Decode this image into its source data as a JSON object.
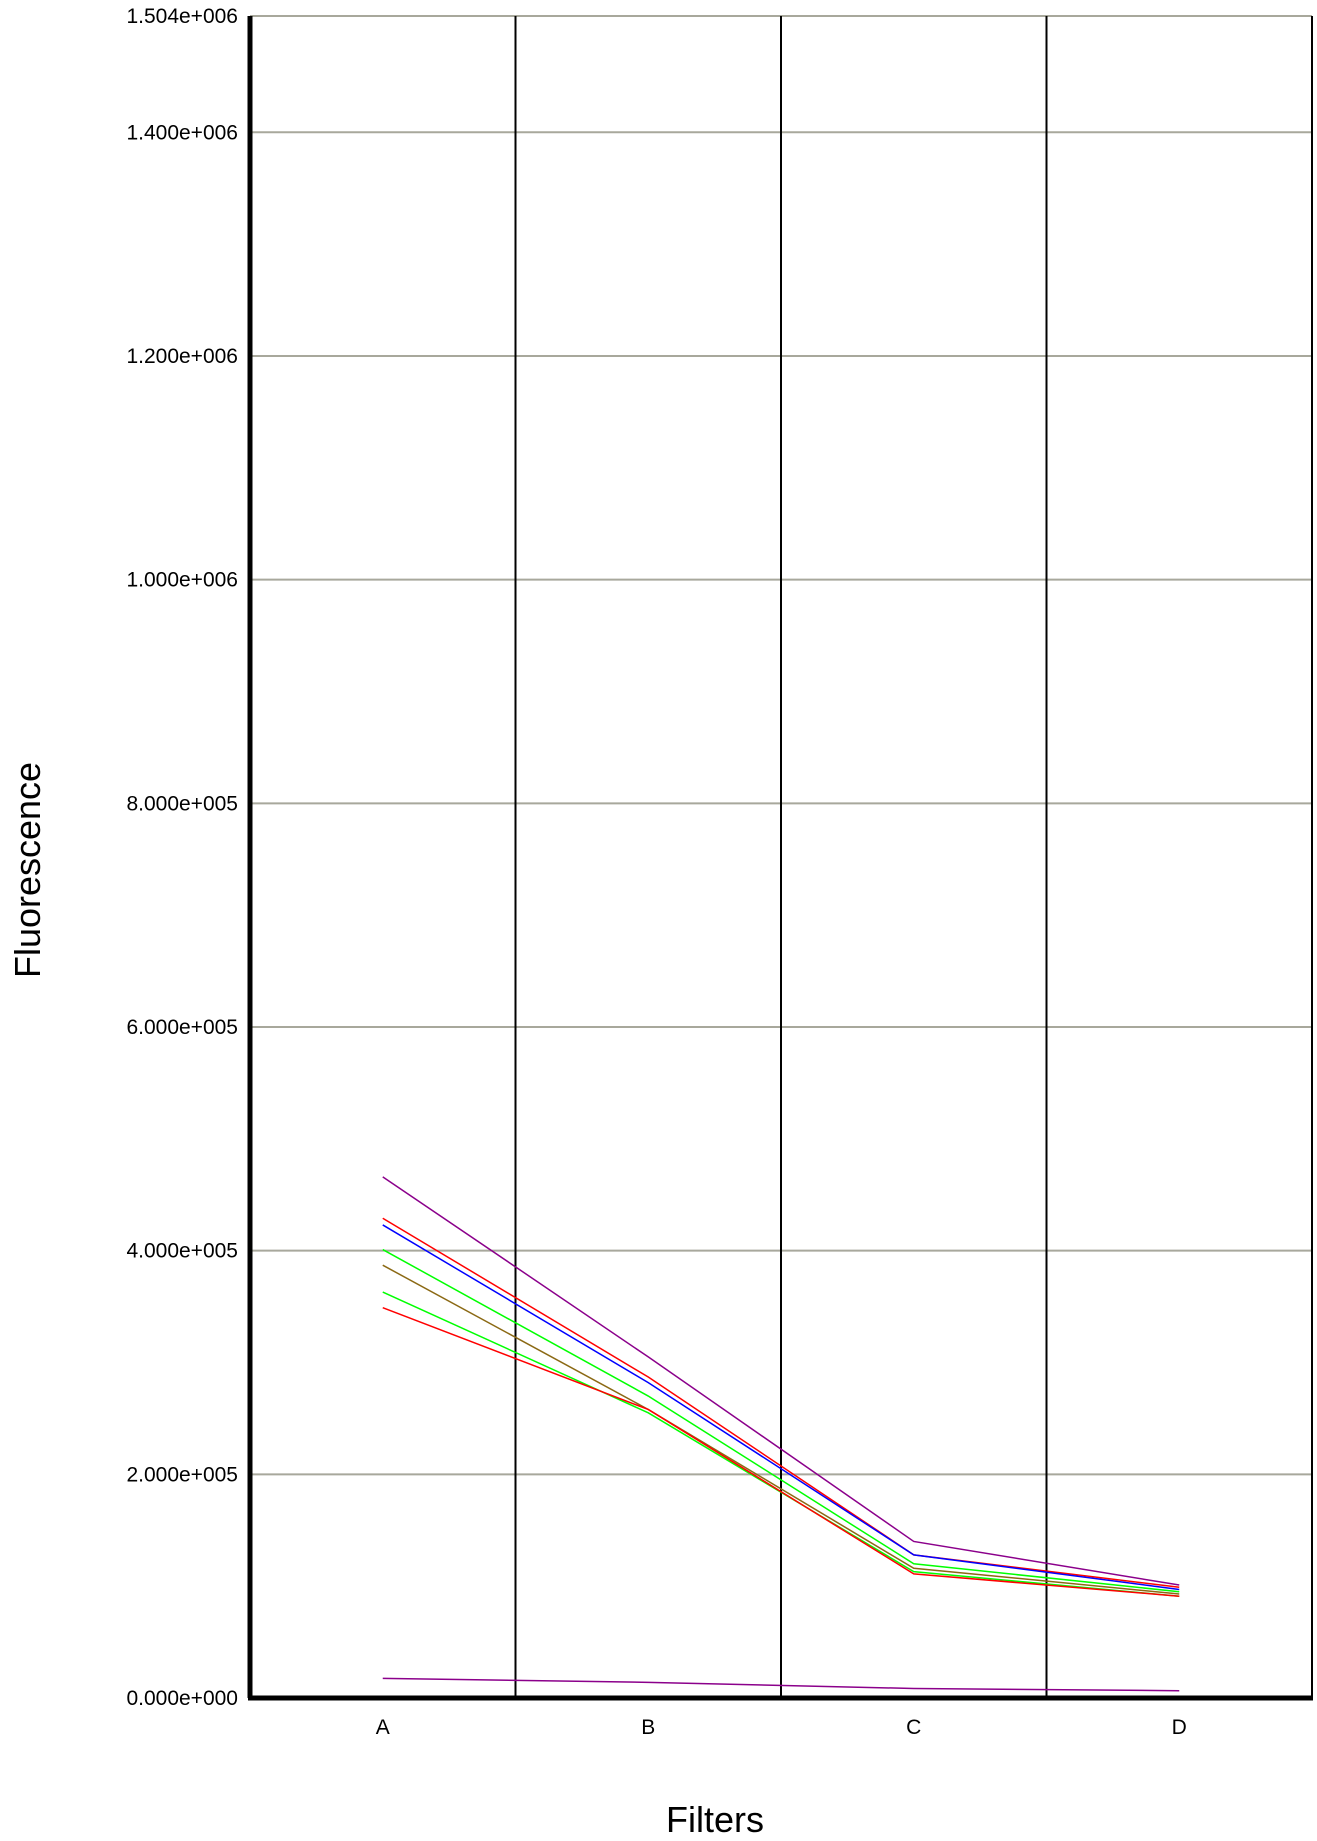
{
  "chart_data": {
    "type": "line",
    "xlabel": "Filters",
    "ylabel": "Fluorescence",
    "categories": [
      "A",
      "B",
      "C",
      "D"
    ],
    "ylim": [
      0,
      1504000
    ],
    "yticks": [
      {
        "value": 0,
        "label": "0.000e+000"
      },
      {
        "value": 200000,
        "label": "2.000e+005"
      },
      {
        "value": 400000,
        "label": "4.000e+005"
      },
      {
        "value": 600000,
        "label": "6.000e+005"
      },
      {
        "value": 800000,
        "label": "8.000e+005"
      },
      {
        "value": 1000000,
        "label": "1.000e+006"
      },
      {
        "value": 1200000,
        "label": "1.200e+006"
      },
      {
        "value": 1400000,
        "label": "1.400e+006"
      },
      {
        "value": 1504000,
        "label": "1.504e+006"
      }
    ],
    "grid": "horizontal gridlines, vertical separators between categories",
    "series": [
      {
        "color": "#8b008b",
        "values": [
          466000,
          305000,
          140000,
          101000
        ]
      },
      {
        "color": "#ff0000",
        "values": [
          429000,
          287000,
          128000,
          99000
        ]
      },
      {
        "color": "#0000ff",
        "values": [
          423000,
          282000,
          128000,
          97000
        ]
      },
      {
        "color": "#00ff00",
        "values": [
          401000,
          270000,
          120000,
          95000
        ]
      },
      {
        "color": "#8b6914",
        "values": [
          387000,
          258000,
          116000,
          93000
        ]
      },
      {
        "color": "#00ff00",
        "values": [
          363000,
          255000,
          113000,
          91000
        ]
      },
      {
        "color": "#ff0000",
        "values": [
          349000,
          258000,
          111000,
          91000
        ]
      },
      {
        "color": "#8b008b",
        "values": [
          17500,
          14000,
          8500,
          6500
        ]
      },
      {
        "color": "#0000ff",
        "values": [
          500,
          500,
          500,
          500
        ]
      }
    ]
  }
}
